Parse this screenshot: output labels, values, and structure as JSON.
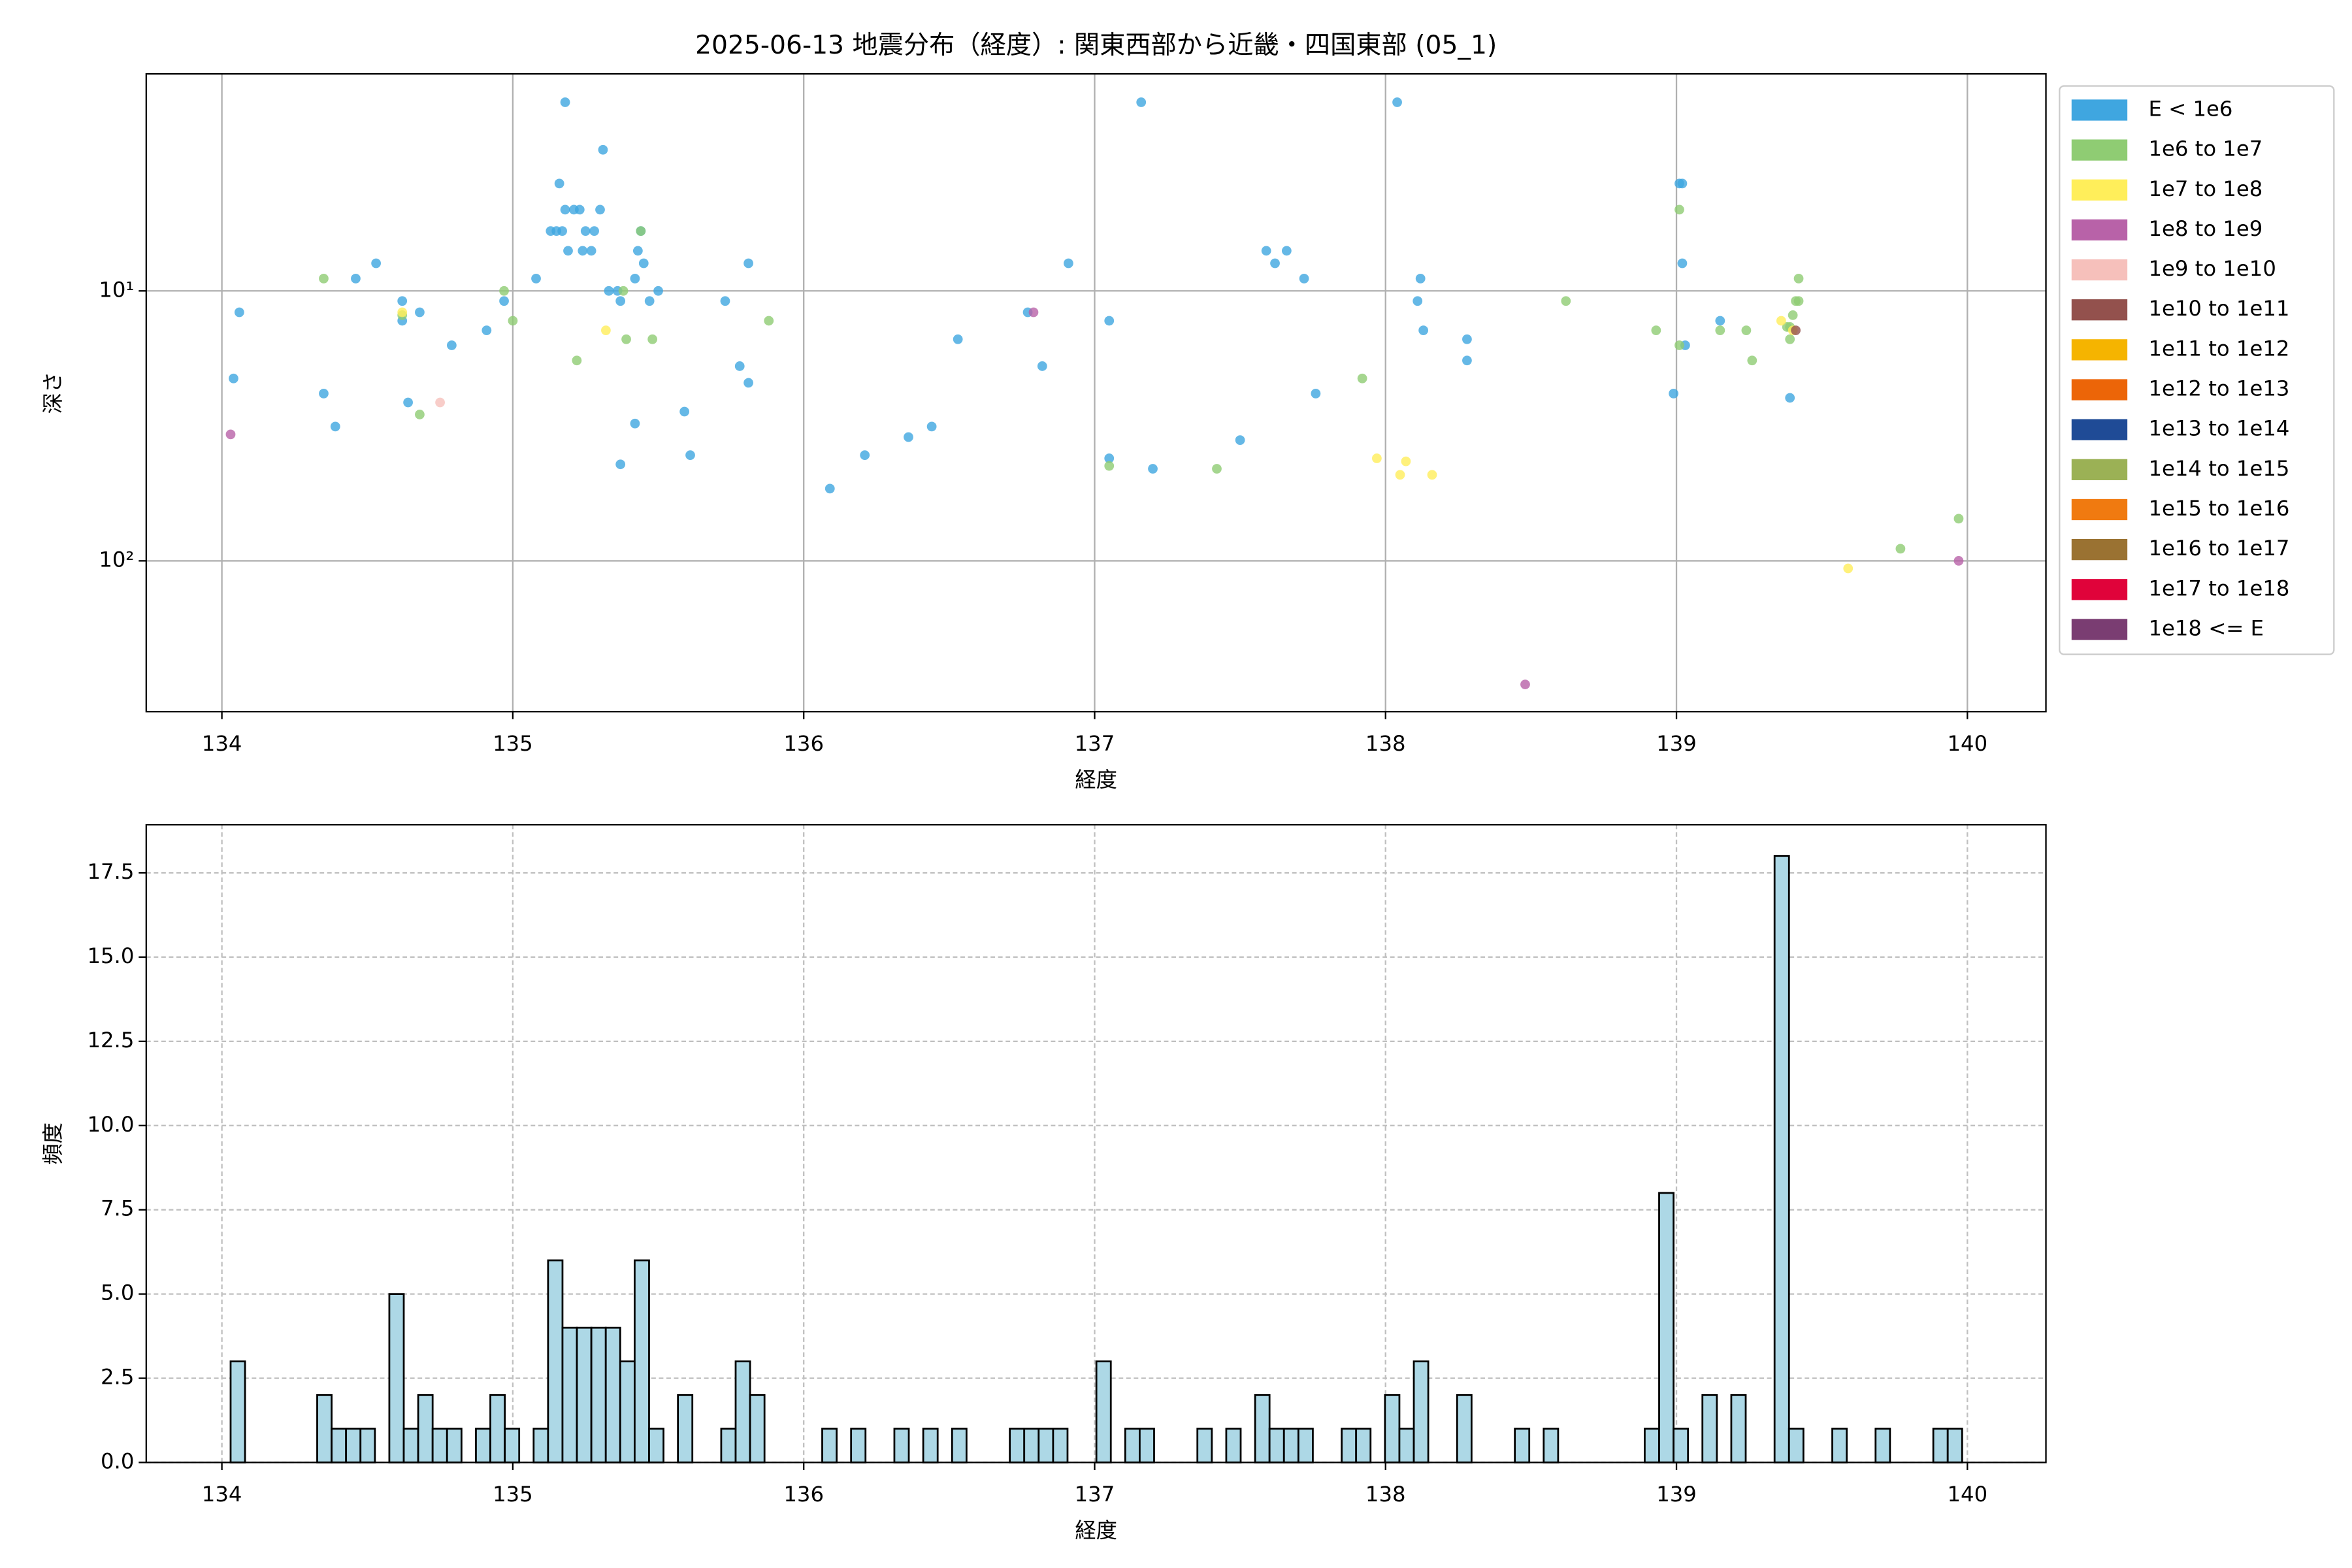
{
  "chart_data": [
    {
      "type": "scatter",
      "title": "2025-06-13 地震分布（経度）: 関東西部から近畿・四国東部 (05_1)",
      "xlabel": "経度",
      "ylabel": "深さ",
      "xlim": [
        133.74,
        140.27
      ],
      "xticks": [
        134,
        135,
        136,
        137,
        138,
        139,
        140
      ],
      "ylim": [
        362,
        1.57
      ],
      "yscale": "log",
      "yticks": [
        {
          "value": 10,
          "label": "10¹"
        },
        {
          "value": 100,
          "label": "10²"
        }
      ],
      "grid": true,
      "legend": "outside upper right",
      "series": [
        {
          "name": "E < 1e6",
          "color": "#3fa6e0",
          "x": [
            134.04,
            134.06,
            134.35,
            134.39,
            134.46,
            134.53,
            134.62,
            134.62,
            134.68,
            134.64,
            134.79,
            134.91,
            134.97,
            135.08,
            135.18,
            135.16,
            135.15,
            135.13,
            135.17,
            135.18,
            135.19,
            135.21,
            135.23,
            135.24,
            135.25,
            135.27,
            135.28,
            135.3,
            135.31,
            135.33,
            135.36,
            135.37,
            135.37,
            135.42,
            135.42,
            135.43,
            135.45,
            135.44,
            135.47,
            135.5,
            135.59,
            135.61,
            135.73,
            135.78,
            135.81,
            135.81,
            136.09,
            136.21,
            136.36,
            136.44,
            136.53,
            136.77,
            136.82,
            136.91,
            137.05,
            137.05,
            137.16,
            137.2,
            137.5,
            137.59,
            137.62,
            137.66,
            137.72,
            137.76,
            138.04,
            138.11,
            138.12,
            138.13,
            138.28,
            138.28,
            138.99,
            139.01,
            139.02,
            139.02,
            139.03,
            139.15,
            139.39
          ],
          "y": [
            21.1,
            12.0,
            24.0,
            31.8,
            9.0,
            7.9,
            10.9,
            12.9,
            12.0,
            25.9,
            15.9,
            14.0,
            10.9,
            9.0,
            2.0,
            4.0,
            6.0,
            6.0,
            6.0,
            5.0,
            7.1,
            5.0,
            5.0,
            7.1,
            6.0,
            7.1,
            6.0,
            5.0,
            3.0,
            10,
            10,
            10.9,
            43.9,
            31.0,
            9.0,
            7.1,
            7.9,
            6.0,
            10.9,
            10,
            28.0,
            40.6,
            10.9,
            19.0,
            21.9,
            7.9,
            54.0,
            40.6,
            34.8,
            31.8,
            15.1,
            12.0,
            19.0,
            7.9,
            12.9,
            41.7,
            2.0,
            45.6,
            35.7,
            7.1,
            7.9,
            7.1,
            9.0,
            24.0,
            2.0,
            10.9,
            9.0,
            14.0,
            15.1,
            18.1,
            24.0,
            4.0,
            4.0,
            7.9,
            15.9,
            12.9,
            24.9
          ]
        },
        {
          "name": "1e6 to 1e7",
          "color": "#8fcc73",
          "x": [
            134.35,
            134.62,
            134.68,
            134.97,
            135.0,
            135.22,
            135.38,
            135.39,
            135.44,
            135.48,
            135.88,
            137.05,
            137.42,
            137.92,
            138.62,
            138.93,
            139.01,
            139.01,
            139.15,
            139.24,
            139.26,
            139.38,
            139.39,
            139.39,
            139.4,
            139.41,
            139.42,
            139.42,
            139.77,
            139.97
          ],
          "y": [
            9.0,
            12.3,
            28.7,
            10,
            12.9,
            18.1,
            10,
            15.1,
            6.0,
            15.1,
            12.9,
            44.5,
            45.6,
            21.1,
            10.9,
            14.0,
            15.9,
            5.0,
            14.0,
            14.0,
            18.1,
            13.6,
            15.1,
            13.6,
            12.3,
            10.9,
            10.9,
            9.0,
            90.2,
            69.8
          ]
        },
        {
          "name": "1e7 to 1e8",
          "color": "#ffee5a",
          "x": [
            134.62,
            135.32,
            137.97,
            138.05,
            138.07,
            138.16,
            139.36,
            139.59,
            139.4
          ],
          "y": [
            12.0,
            14.0,
            41.7,
            48.0,
            42.8,
            48.0,
            12.9,
            106.7,
            14.0
          ]
        },
        {
          "name": "1e8 to 1e9",
          "color": "#b862a8",
          "x": [
            134.03,
            136.79,
            138.48,
            139.97
          ],
          "y": [
            34.0,
            12.0,
            287,
            100
          ]
        },
        {
          "name": "1e9 to 1e10",
          "color": "#f6c0bb",
          "x": [
            134.75
          ],
          "y": [
            25.9
          ]
        },
        {
          "name": "1e10 to 1e11",
          "color": "#93514d",
          "x": [
            139.41
          ],
          "y": [
            14.0
          ]
        },
        {
          "name": "1e11 to 1e12",
          "color": "#f5b400",
          "x": [],
          "y": []
        },
        {
          "name": "1e12 to 1e13",
          "color": "#ec6508",
          "x": [],
          "y": []
        },
        {
          "name": "1e13 to 1e14",
          "color": "#1f4b96",
          "x": [],
          "y": []
        },
        {
          "name": "1e14 to 1e15",
          "color": "#9bb155",
          "x": [],
          "y": []
        },
        {
          "name": "1e15 to 1e16",
          "color": "#f07a10",
          "x": [],
          "y": []
        },
        {
          "name": "1e16 to 1e17",
          "color": "#9a7232",
          "x": [],
          "y": []
        },
        {
          "name": "1e17 to 1e18",
          "color": "#e0033a",
          "x": [],
          "y": []
        },
        {
          "name": "1e18 <= E",
          "color": "#7a3d72",
          "x": [],
          "y": []
        }
      ]
    },
    {
      "type": "histogram",
      "xlabel": "経度",
      "ylabel": "頻度",
      "xlim": [
        133.74,
        140.27
      ],
      "xticks": [
        134,
        135,
        136,
        137,
        138,
        139,
        140
      ],
      "ylim": [
        0,
        18.93
      ],
      "yticks": [
        {
          "value": 0,
          "label": "0.0"
        },
        {
          "value": 2.5,
          "label": "2.5"
        },
        {
          "value": 5,
          "label": "5.0"
        },
        {
          "value": 7.5,
          "label": "7.5"
        },
        {
          "value": 10,
          "label": "10.0"
        },
        {
          "value": 12.5,
          "label": "12.5"
        },
        {
          "value": 15,
          "label": "15.0"
        },
        {
          "value": 17.5,
          "label": "17.5"
        }
      ],
      "grid": true,
      "color": "#add8e6",
      "edgecolor": "#000000",
      "bins": [
        134.03,
        134.0796,
        134.1292,
        134.1788,
        134.2284,
        134.278,
        134.3276,
        134.3772,
        134.4268,
        134.4764,
        134.526,
        134.5756,
        134.6252,
        134.6748,
        134.7244,
        134.774,
        134.8236,
        134.8732,
        134.9228,
        134.9724,
        135.022,
        135.0716,
        135.1212,
        135.1708,
        135.2204,
        135.27,
        135.3196,
        135.3692,
        135.4188,
        135.4684,
        135.518,
        135.5676,
        135.6172,
        135.6668,
        135.7164,
        135.766,
        135.8156,
        135.8652,
        135.9148,
        135.9644,
        136.014,
        136.0636,
        136.1132,
        136.1628,
        136.2124,
        136.262,
        136.3116,
        136.3612,
        136.4108,
        136.4604,
        136.51,
        136.5596,
        136.6092,
        136.6588,
        136.7084,
        136.758,
        136.8076,
        136.8572,
        136.9068,
        136.9564,
        137.006,
        137.0556,
        137.1052,
        137.1548,
        137.2044,
        137.254,
        137.3036,
        137.3532,
        137.4028,
        137.4524,
        137.502,
        137.5516,
        137.6012,
        137.6508,
        137.7004,
        137.75,
        137.7996,
        137.8492,
        137.8988,
        137.9484,
        137.998,
        138.0476,
        138.0972,
        138.1468,
        138.1964,
        138.246,
        138.2956,
        138.3452,
        138.3948,
        138.4444,
        138.494,
        138.5436,
        138.5932,
        138.6428,
        138.6924,
        138.742,
        138.7916,
        138.8412,
        138.8908,
        138.9404,
        138.99,
        139.0396,
        139.0892,
        139.1388,
        139.1884,
        139.238,
        139.2876,
        139.3372,
        139.3868,
        139.4364,
        139.486,
        139.5356,
        139.5852,
        139.6348,
        139.6844,
        139.734,
        139.7836,
        139.8332,
        139.8828,
        139.9324,
        139.982
      ],
      "values": [
        3,
        0,
        0,
        0,
        0,
        0,
        2,
        1,
        1,
        1,
        0,
        5,
        1,
        2,
        1,
        1,
        0,
        1,
        2,
        1,
        0,
        1,
        6,
        4,
        4,
        4,
        4,
        3,
        6,
        1,
        0,
        2,
        0,
        0,
        1,
        3,
        2,
        0,
        0,
        0,
        0,
        1,
        0,
        1,
        0,
        0,
        1,
        0,
        1,
        0,
        1,
        0,
        0,
        0,
        1,
        1,
        1,
        1,
        0,
        0,
        3,
        0,
        1,
        1,
        0,
        0,
        0,
        1,
        0,
        1,
        0,
        2,
        1,
        1,
        1,
        0,
        0,
        1,
        1,
        0,
        2,
        1,
        3,
        0,
        0,
        2,
        0,
        0,
        0,
        1,
        0,
        1,
        0,
        0,
        0,
        0,
        0,
        0,
        1,
        8,
        1,
        0,
        2,
        0,
        2,
        0,
        0,
        18,
        1,
        0,
        0,
        1,
        0,
        0,
        1,
        0,
        0,
        0,
        1,
        1
      ]
    }
  ]
}
